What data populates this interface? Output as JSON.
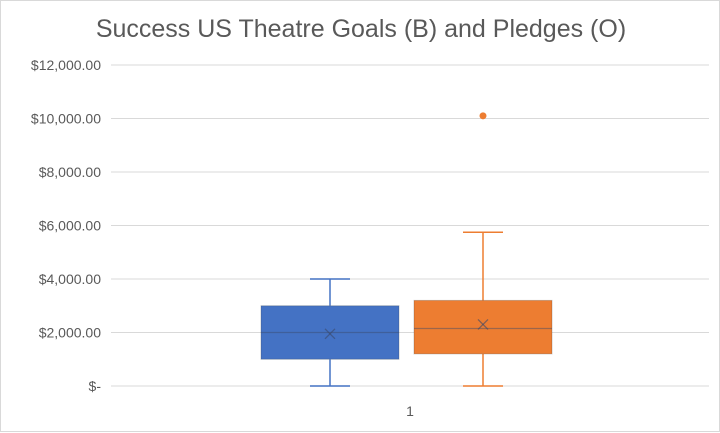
{
  "chart_data": {
    "type": "boxplot",
    "title": "Success US Theatre Goals (B) and Pledges (O)",
    "xlabel": "",
    "ylabel": "",
    "categories": [
      "1"
    ],
    "ylim": [
      0,
      12000
    ],
    "yticks": [
      0,
      2000,
      4000,
      6000,
      8000,
      10000,
      12000
    ],
    "ytick_labels": [
      "$-",
      "$2,000.00",
      "$4,000.00",
      "$6,000.00",
      "$8,000.00",
      "$10,000.00",
      "$12,000.00"
    ],
    "grid": true,
    "legend": "none",
    "series": [
      {
        "color": "#4472c4",
        "min": 0,
        "q1": 1000,
        "median": 2000,
        "q3": 3000,
        "max": 4000,
        "mean": 1950,
        "outliers": []
      },
      {
        "color": "#ed7d31",
        "min": 0,
        "q1": 1200,
        "median": 2150,
        "q3": 3200,
        "max": 5750,
        "mean": 2300,
        "outliers": [
          10100
        ]
      }
    ]
  }
}
